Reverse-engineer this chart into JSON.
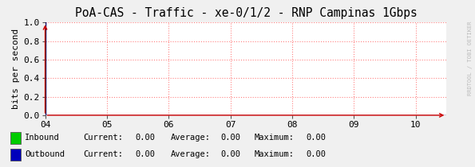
{
  "title": "PoA-CAS - Traffic - xe-0/1/2 - RNP Campinas 1Gbps",
  "ylabel": "bits per second",
  "xlim": [
    4,
    10.5
  ],
  "ylim": [
    0.0,
    1.0
  ],
  "xticks": [
    4,
    5,
    6,
    7,
    8,
    9,
    10
  ],
  "xtick_labels": [
    "04",
    "05",
    "06",
    "07",
    "08",
    "09",
    "10"
  ],
  "yticks": [
    0.0,
    0.2,
    0.4,
    0.6,
    0.8,
    1.0
  ],
  "ytick_labels": [
    "0.0",
    "0.2",
    "0.4",
    "0.6",
    "0.8",
    "1.0"
  ],
  "bg_color": "#f0f0f0",
  "plot_bg_color": "#ffffff",
  "grid_color": "#ff8080",
  "axis_line_color": "#000066",
  "arrow_color": "#cc0000",
  "title_fontsize": 10.5,
  "tick_fontsize": 8,
  "ylabel_fontsize": 8,
  "legend_items": [
    {
      "label": "Inbound",
      "color": "#00cc00"
    },
    {
      "label": "Outbound",
      "color": "#0000bb"
    }
  ],
  "legend_stats": [
    {
      "current": "0.00",
      "average": "0.00",
      "maximum": "0.00"
    },
    {
      "current": "0.00",
      "average": "0.00",
      "maximum": "0.00"
    }
  ],
  "watermark": "RRDTOOL / TOBI OETIKER",
  "watermark_color": "#bbbbbb",
  "font_family": "monospace",
  "legend_fontsize": 7.5
}
